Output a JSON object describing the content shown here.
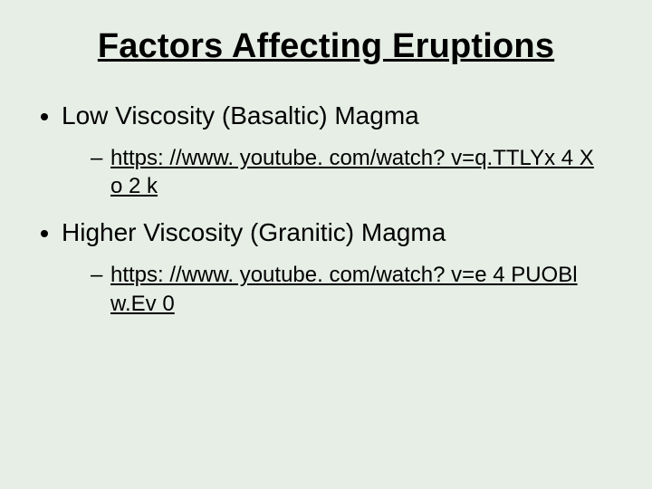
{
  "background_color": "#e6eee6",
  "text_color": "#000000",
  "font_family": "Arial",
  "title": {
    "text": "Factors Affecting Eruptions",
    "fontsize": 38,
    "fontweight": "bold",
    "underline": true,
    "align": "center"
  },
  "bullets": [
    {
      "text": "Low Viscosity (Basaltic) Magma",
      "fontsize": 28,
      "sub": [
        {
          "link_text": "https: //www. youtube. com/watch? v=q.TTLYx 4 X o 2 k",
          "fontsize": 24,
          "underline": true
        }
      ]
    },
    {
      "text": "Higher Viscosity (Granitic) Magma",
      "fontsize": 28,
      "sub": [
        {
          "link_text": "https: //www. youtube. com/watch? v=e 4 PUOBl w.Ev 0",
          "fontsize": 24,
          "underline": true
        }
      ]
    }
  ]
}
